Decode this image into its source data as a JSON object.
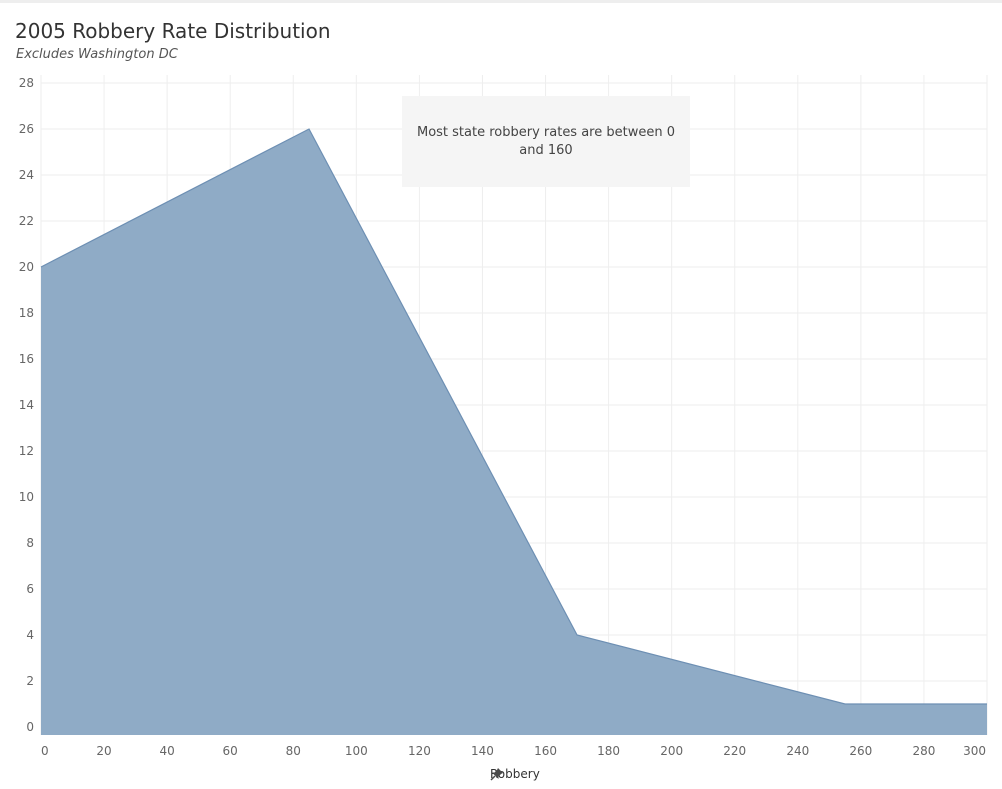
{
  "chart_data": {
    "type": "area",
    "title": "2005 Robbery Rate Distribution",
    "subtitle": "Excludes Washington DC",
    "xlabel": "Robbery",
    "ylabel": "",
    "x": [
      0,
      85,
      170,
      255,
      300
    ],
    "values": [
      20,
      26,
      4,
      1,
      1
    ],
    "xlim": [
      0,
      300
    ],
    "ylim": [
      0,
      28
    ],
    "xticks": [
      "0",
      "20",
      "40",
      "60",
      "80",
      "100",
      "120",
      "140",
      "160",
      "180",
      "200",
      "220",
      "240",
      "260",
      "280",
      "300"
    ],
    "yticks": [
      "0",
      "2",
      "4",
      "6",
      "8",
      "10",
      "12",
      "14",
      "16",
      "18",
      "20",
      "22",
      "24",
      "26",
      "28"
    ],
    "annotation": "Most state robbery rates are between 0 and 160",
    "grid": true,
    "fill_color": "#8fabc6",
    "line_color": "#6d8fb3"
  },
  "icons": {
    "axis_pin": "pin-icon"
  }
}
